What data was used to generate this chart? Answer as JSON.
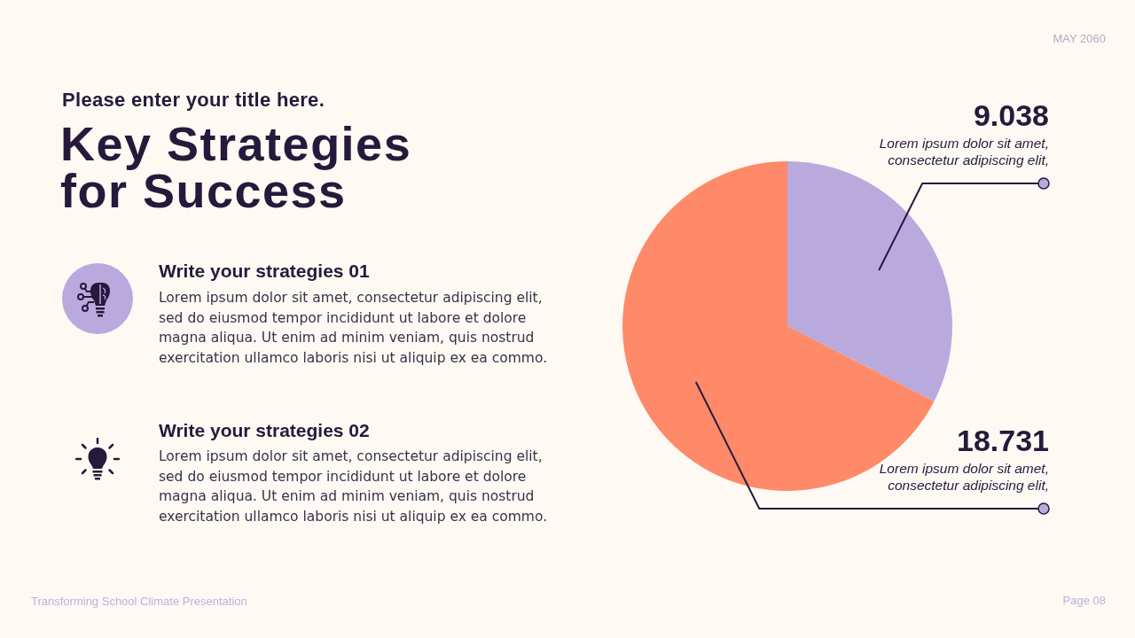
{
  "chart_data": {
    "type": "pie",
    "title": "Key Strategies for Success",
    "subtitle": "Please enter your title here.",
    "categories": [
      null,
      null
    ],
    "values": [
      9.038,
      18.731
    ],
    "colors": [
      "#b8aadd",
      "#fe8a69"
    ],
    "data_labels": true,
    "annotations": [
      "MAY 2060",
      "Write your strategies 01",
      "Lorem ipsum dolor sit amet, consectetur adipiscing elit, sed do eiusmod tempor incididunt ut labore et dolore magna aliqua. Ut enim ad minim veniam, quis nostrud exercitation ullamco laboris nisi ut aliquip ex ea commo.",
      "Write your strategies 02",
      "Lorem ipsum dolor sit amet, consectetur adipiscing elit, sed do eiusmod tempor incididunt ut labore et dolore magna aliqua. Ut enim ad minim veniam, quis nostrud exercitation ullamco laboris nisi ut aliquip ex ea commo.",
      "Transforming School Climate Presentation",
      "Page 08",
      "Lorem ipsum dolor sit amet, consectetur adipiscing elit,",
      "Lorem ipsum dolor sit amet, consectetur adipiscing elit,"
    ]
  }
}
